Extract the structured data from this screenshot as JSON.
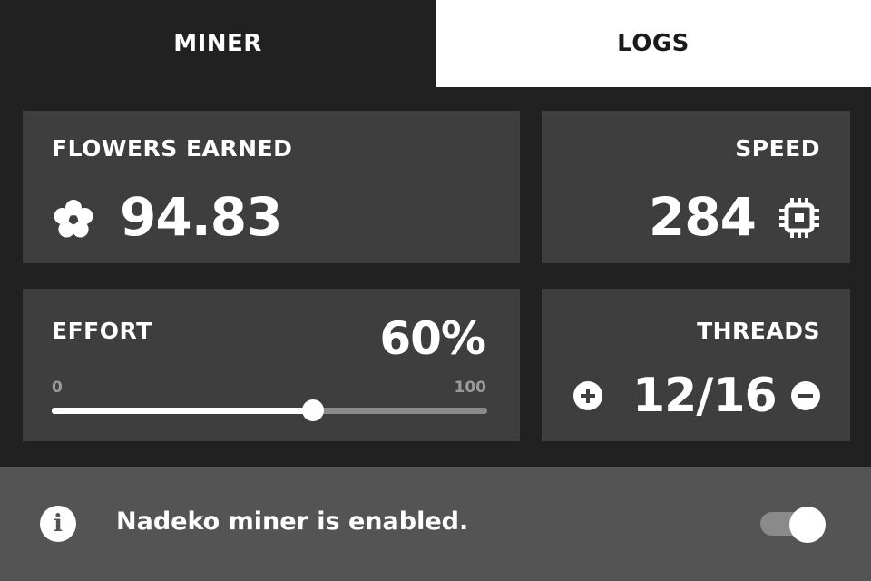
{
  "tabs": [
    {
      "label": "MINER",
      "active": true
    },
    {
      "label": "LOGS",
      "active": false
    }
  ],
  "flowers": {
    "label": "FLOWERS EARNED",
    "value": "94.83",
    "icon": "flower-icon"
  },
  "speed": {
    "label": "SPEED",
    "value": "284",
    "icon": "cpu-chip-icon"
  },
  "effort": {
    "label": "EFFORT",
    "value": "60%",
    "min": "0",
    "max": "100",
    "level": 60
  },
  "threads": {
    "label": "THREADS",
    "value": "12/16",
    "increase_icon": "plus-circle-icon",
    "decrease_icon": "minus-circle-icon"
  },
  "status": {
    "text": "Nadeko miner is enabled.",
    "icon": "info-icon",
    "enabled": true
  },
  "colors": {
    "background": "#212121",
    "card": "#3e3e3e",
    "status_bar": "#545454",
    "accent": "#ffffff"
  }
}
